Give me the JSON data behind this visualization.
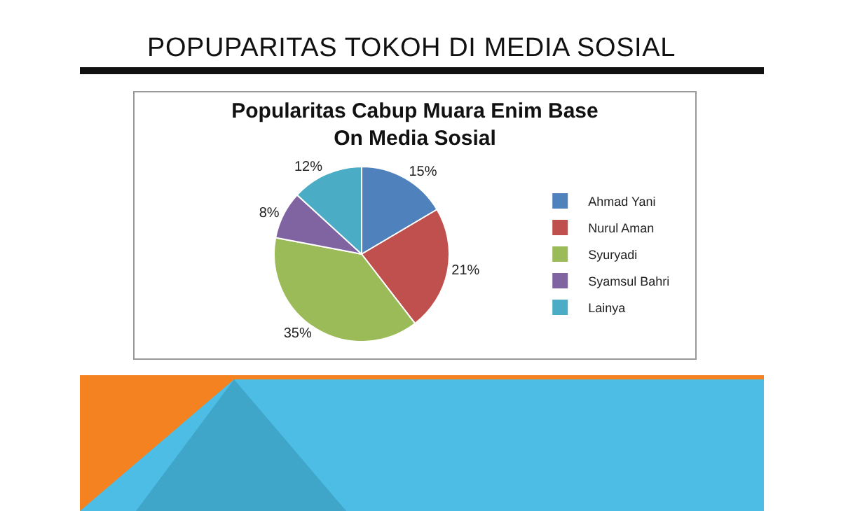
{
  "chart_data": {
    "type": "pie",
    "title": "POPUPARITAS TOKOH DI MEDIA SOSIAL",
    "subtitle": "Popularitas Cabup Muara Enim Base On Media Sosial",
    "categories": [
      "Ahmad Yani",
      "Nurul Aman",
      "Syuryadi",
      "Syamsul Bahri",
      "Lainya"
    ],
    "values": [
      15,
      21,
      35,
      8,
      12
    ],
    "value_labels": [
      "15%",
      "21%",
      "35%",
      "8%",
      "12%"
    ],
    "colors": [
      "#4f81bd",
      "#c0504d",
      "#9bbb59",
      "#8064a2",
      "#4bacc6"
    ],
    "legend": "right"
  }
}
